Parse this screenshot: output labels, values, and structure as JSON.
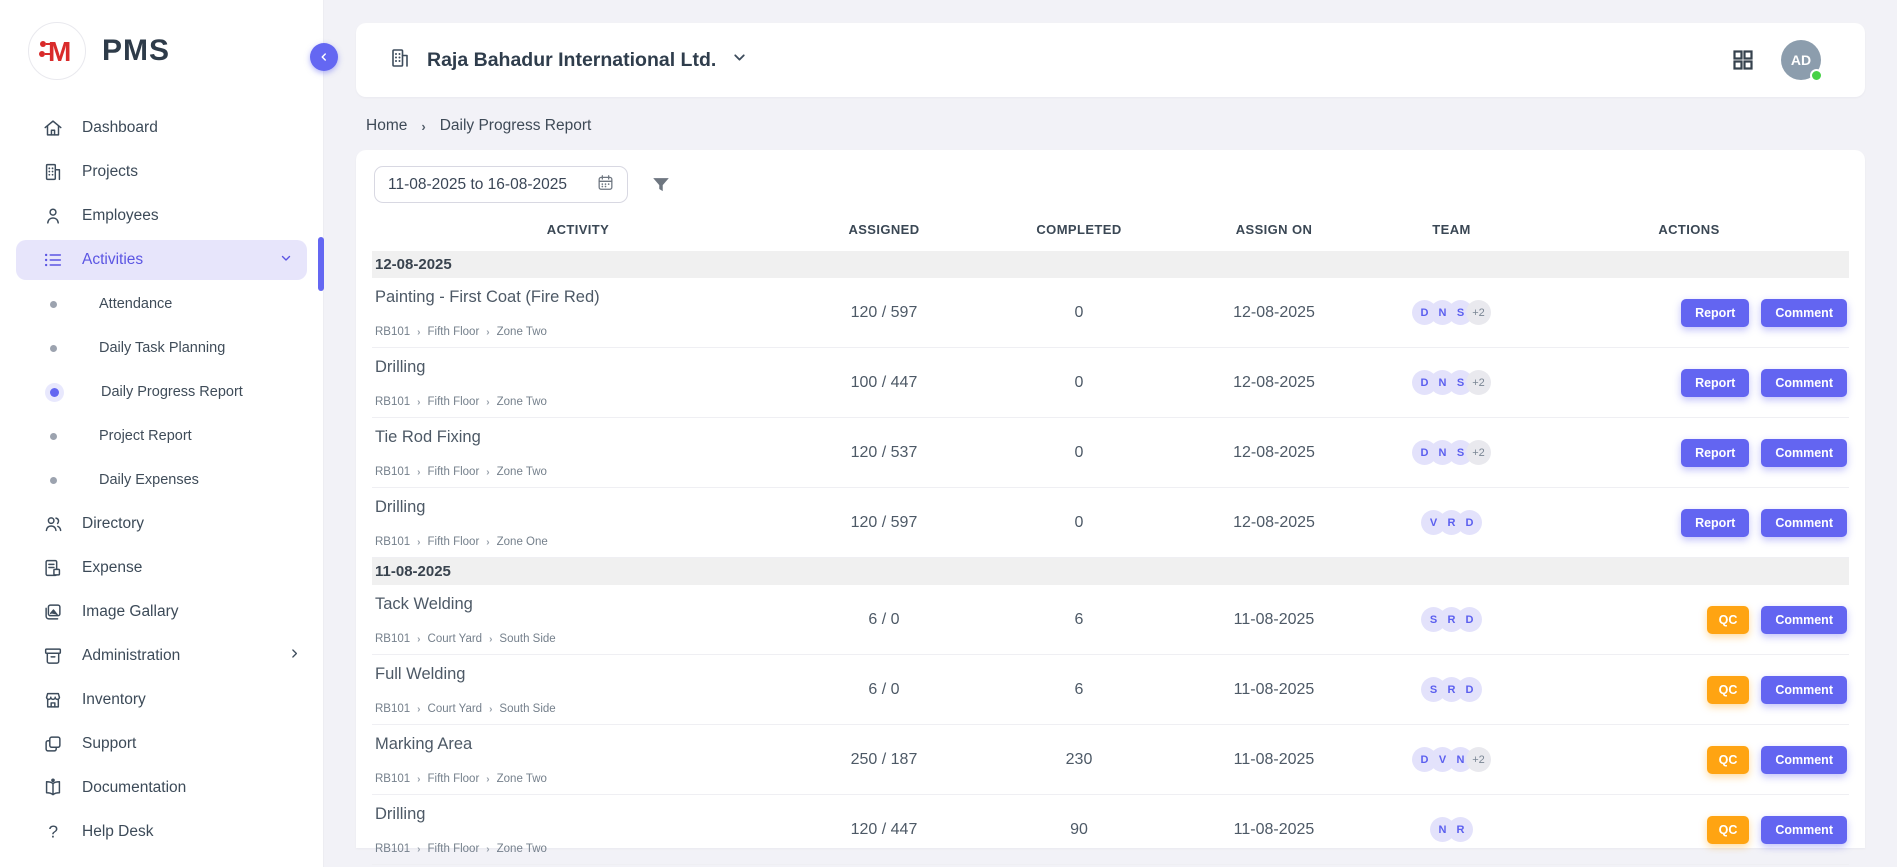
{
  "app": {
    "name": "PMS"
  },
  "colors": {
    "accent": "#6366F1",
    "qc_orange": "#FFA412",
    "avatar_bg": "#E3E2FB",
    "avatar_text": "#5B5FEF",
    "online_green": "#47D147",
    "profile_bg": "#8C9DAD",
    "group_band_bg": "#F0F0F0"
  },
  "sidebar": {
    "items": [
      {
        "label": "Dashboard"
      },
      {
        "label": "Projects"
      },
      {
        "label": "Employees"
      },
      {
        "label": "Activities",
        "active": true,
        "expanded": true
      },
      {
        "label": "Directory"
      },
      {
        "label": "Expense"
      },
      {
        "label": "Image Gallary"
      },
      {
        "label": "Administration",
        "has_submenu": true
      },
      {
        "label": "Inventory"
      },
      {
        "label": "Support"
      },
      {
        "label": "Documentation"
      },
      {
        "label": "Help Desk"
      }
    ],
    "activities_submenu": [
      {
        "label": "Attendance"
      },
      {
        "label": "Daily Task Planning"
      },
      {
        "label": "Daily Progress Report",
        "active": true
      },
      {
        "label": "Project Report"
      },
      {
        "label": "Daily Expenses"
      }
    ]
  },
  "topbar": {
    "company": "Raja Bahadur International Ltd.",
    "profile_initials": "AD"
  },
  "breadcrumb": {
    "home": "Home",
    "current": "Daily Progress Report"
  },
  "filters": {
    "date_range": "11-08-2025 to 16-08-2025"
  },
  "table": {
    "columns": [
      "ACTIVITY",
      "ASSIGNED",
      "COMPLETED",
      "ASSIGN ON",
      "TEAM",
      "ACTIONS"
    ],
    "groups": [
      {
        "date": "12-08-2025",
        "rows": [
          {
            "title": "Painting - First Coat (Fire Red)",
            "path": [
              "RB101",
              "Fifth Floor",
              "Zone Two"
            ],
            "assigned": "120 / 597",
            "completed": "0",
            "assign_on": "12-08-2025",
            "team": [
              "D",
              "N",
              "S",
              "+2"
            ],
            "actions": [
              "Report",
              "Comment"
            ]
          },
          {
            "title": "Drilling",
            "path": [
              "RB101",
              "Fifth Floor",
              "Zone Two"
            ],
            "assigned": "100 / 447",
            "completed": "0",
            "assign_on": "12-08-2025",
            "team": [
              "D",
              "N",
              "S",
              "+2"
            ],
            "actions": [
              "Report",
              "Comment"
            ]
          },
          {
            "title": "Tie Rod Fixing",
            "path": [
              "RB101",
              "Fifth Floor",
              "Zone Two"
            ],
            "assigned": "120 / 537",
            "completed": "0",
            "assign_on": "12-08-2025",
            "team": [
              "D",
              "N",
              "S",
              "+2"
            ],
            "actions": [
              "Report",
              "Comment"
            ]
          },
          {
            "title": "Drilling",
            "path": [
              "RB101",
              "Fifth Floor",
              "Zone One"
            ],
            "assigned": "120 / 597",
            "completed": "0",
            "assign_on": "12-08-2025",
            "team": [
              "V",
              "R",
              "D"
            ],
            "actions": [
              "Report",
              "Comment"
            ]
          }
        ]
      },
      {
        "date": "11-08-2025",
        "rows": [
          {
            "title": "Tack Welding",
            "path": [
              "RB101",
              "Court Yard",
              "South Side"
            ],
            "assigned": "6 / 0",
            "completed": "6",
            "assign_on": "11-08-2025",
            "team": [
              "S",
              "R",
              "D"
            ],
            "actions": [
              "QC",
              "Comment"
            ]
          },
          {
            "title": "Full Welding",
            "path": [
              "RB101",
              "Court Yard",
              "South Side"
            ],
            "assigned": "6 / 0",
            "completed": "6",
            "assign_on": "11-08-2025",
            "team": [
              "S",
              "R",
              "D"
            ],
            "actions": [
              "QC",
              "Comment"
            ]
          },
          {
            "title": "Marking Area",
            "path": [
              "RB101",
              "Fifth Floor",
              "Zone Two"
            ],
            "assigned": "250 / 187",
            "completed": "230",
            "assign_on": "11-08-2025",
            "team": [
              "D",
              "V",
              "N",
              "+2"
            ],
            "actions": [
              "QC",
              "Comment"
            ]
          },
          {
            "title": "Drilling",
            "path": [
              "RB101",
              "Fifth Floor",
              "Zone Two"
            ],
            "assigned": "120 / 447",
            "completed": "90",
            "assign_on": "11-08-2025",
            "team": [
              "N",
              "R"
            ],
            "actions": [
              "QC",
              "Comment"
            ]
          }
        ]
      }
    ]
  }
}
